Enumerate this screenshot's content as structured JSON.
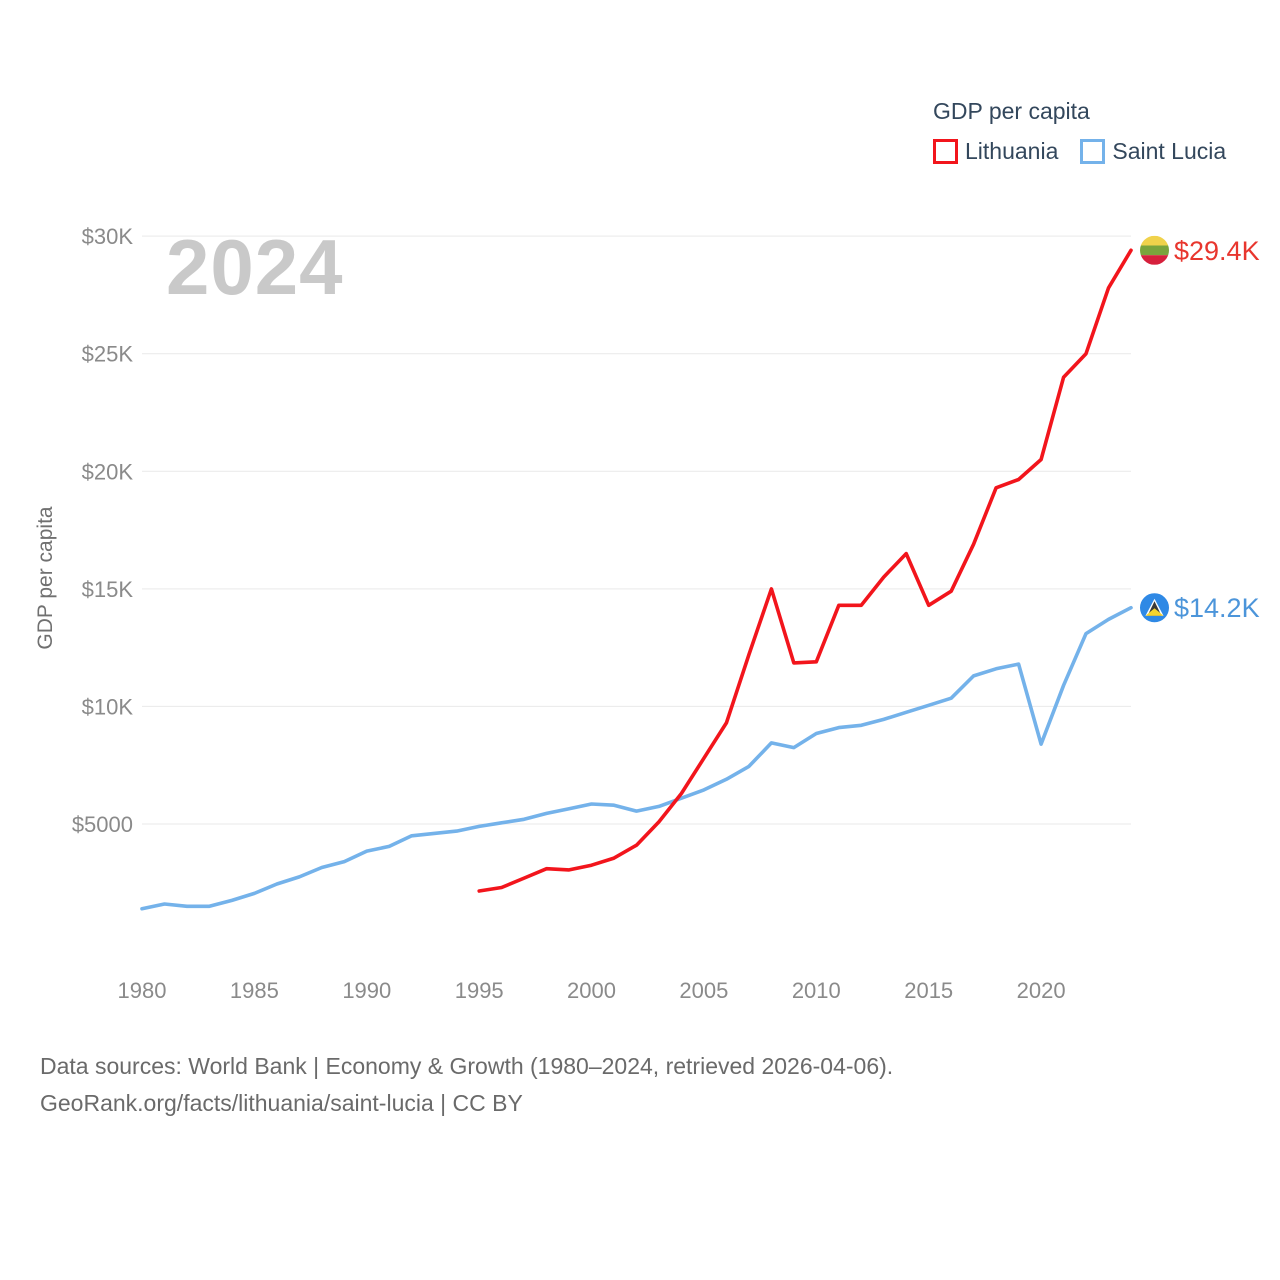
{
  "watermark": "2024",
  "legend": {
    "title": "GDP per capita",
    "items": [
      {
        "label": "Lithuania",
        "color": "#f2151c"
      },
      {
        "label": "Saint Lucia",
        "color": "#74b2ea"
      }
    ]
  },
  "y_axis": {
    "title": "GDP per capita",
    "ticks": [
      {
        "value": 5000,
        "label": "$5000"
      },
      {
        "value": 10000,
        "label": "$10K"
      },
      {
        "value": 15000,
        "label": "$15K"
      },
      {
        "value": 20000,
        "label": "$20K"
      },
      {
        "value": 25000,
        "label": "$25K"
      },
      {
        "value": 30000,
        "label": "$30K"
      }
    ]
  },
  "x_axis": {
    "ticks": [
      "1980",
      "1985",
      "1990",
      "1995",
      "2000",
      "2005",
      "2010",
      "2015",
      "2020"
    ]
  },
  "footer": {
    "line1": "Data sources: World Bank | Economy & Growth (1980–2024, retrieved 2026-04-06).",
    "line2": "GeoRank.org/facts/lithuania/saint-lucia | CC BY"
  },
  "chart_data": {
    "type": "line",
    "title": "GDP per capita",
    "xlabel": "",
    "ylabel": "GDP per capita",
    "x_range": [
      1980,
      2024
    ],
    "ylim": [
      0,
      31000
    ],
    "grid": "horizontal",
    "legend_position": "top-right",
    "series": [
      {
        "name": "Lithuania",
        "color": "#f2151c",
        "end_label": "$29.4K",
        "end_label_color": "#e8362e",
        "x": [
          1995,
          1996,
          1997,
          1998,
          1999,
          2000,
          2001,
          2002,
          2003,
          2004,
          2005,
          2006,
          2007,
          2008,
          2009,
          2010,
          2011,
          2012,
          2013,
          2014,
          2015,
          2016,
          2017,
          2018,
          2019,
          2020,
          2021,
          2022,
          2023,
          2024
        ],
        "values": [
          2150,
          2300,
          2700,
          3100,
          3050,
          3250,
          3550,
          4100,
          5100,
          6300,
          7800,
          9300,
          12200,
          15000,
          11850,
          11900,
          14300,
          14300,
          15500,
          16500,
          14300,
          14900,
          16900,
          19300,
          19650,
          20500,
          24000,
          25000,
          27800,
          29400
        ]
      },
      {
        "name": "Saint Lucia",
        "color": "#74b2ea",
        "end_label": "$14.2K",
        "end_label_color": "#4c95da",
        "x": [
          1980,
          1981,
          1982,
          1983,
          1984,
          1985,
          1986,
          1987,
          1988,
          1989,
          1990,
          1991,
          1992,
          1993,
          1994,
          1995,
          1996,
          1997,
          1998,
          1999,
          2000,
          2001,
          2002,
          2003,
          2004,
          2005,
          2006,
          2007,
          2008,
          2009,
          2010,
          2011,
          2012,
          2013,
          2014,
          2015,
          2016,
          2017,
          2018,
          2019,
          2020,
          2021,
          2022,
          2023,
          2024
        ],
        "values": [
          1400,
          1600,
          1500,
          1500,
          1750,
          2050,
          2450,
          2750,
          3150,
          3400,
          3850,
          4050,
          4500,
          4600,
          4700,
          4900,
          5050,
          5200,
          5450,
          5650,
          5850,
          5800,
          5550,
          5750,
          6100,
          6450,
          6900,
          7450,
          8450,
          8250,
          8850,
          9100,
          9200,
          9450,
          9750,
          10050,
          10350,
          11300,
          11600,
          11800,
          8400,
          10900,
          13100,
          13700,
          14200
        ]
      }
    ]
  }
}
